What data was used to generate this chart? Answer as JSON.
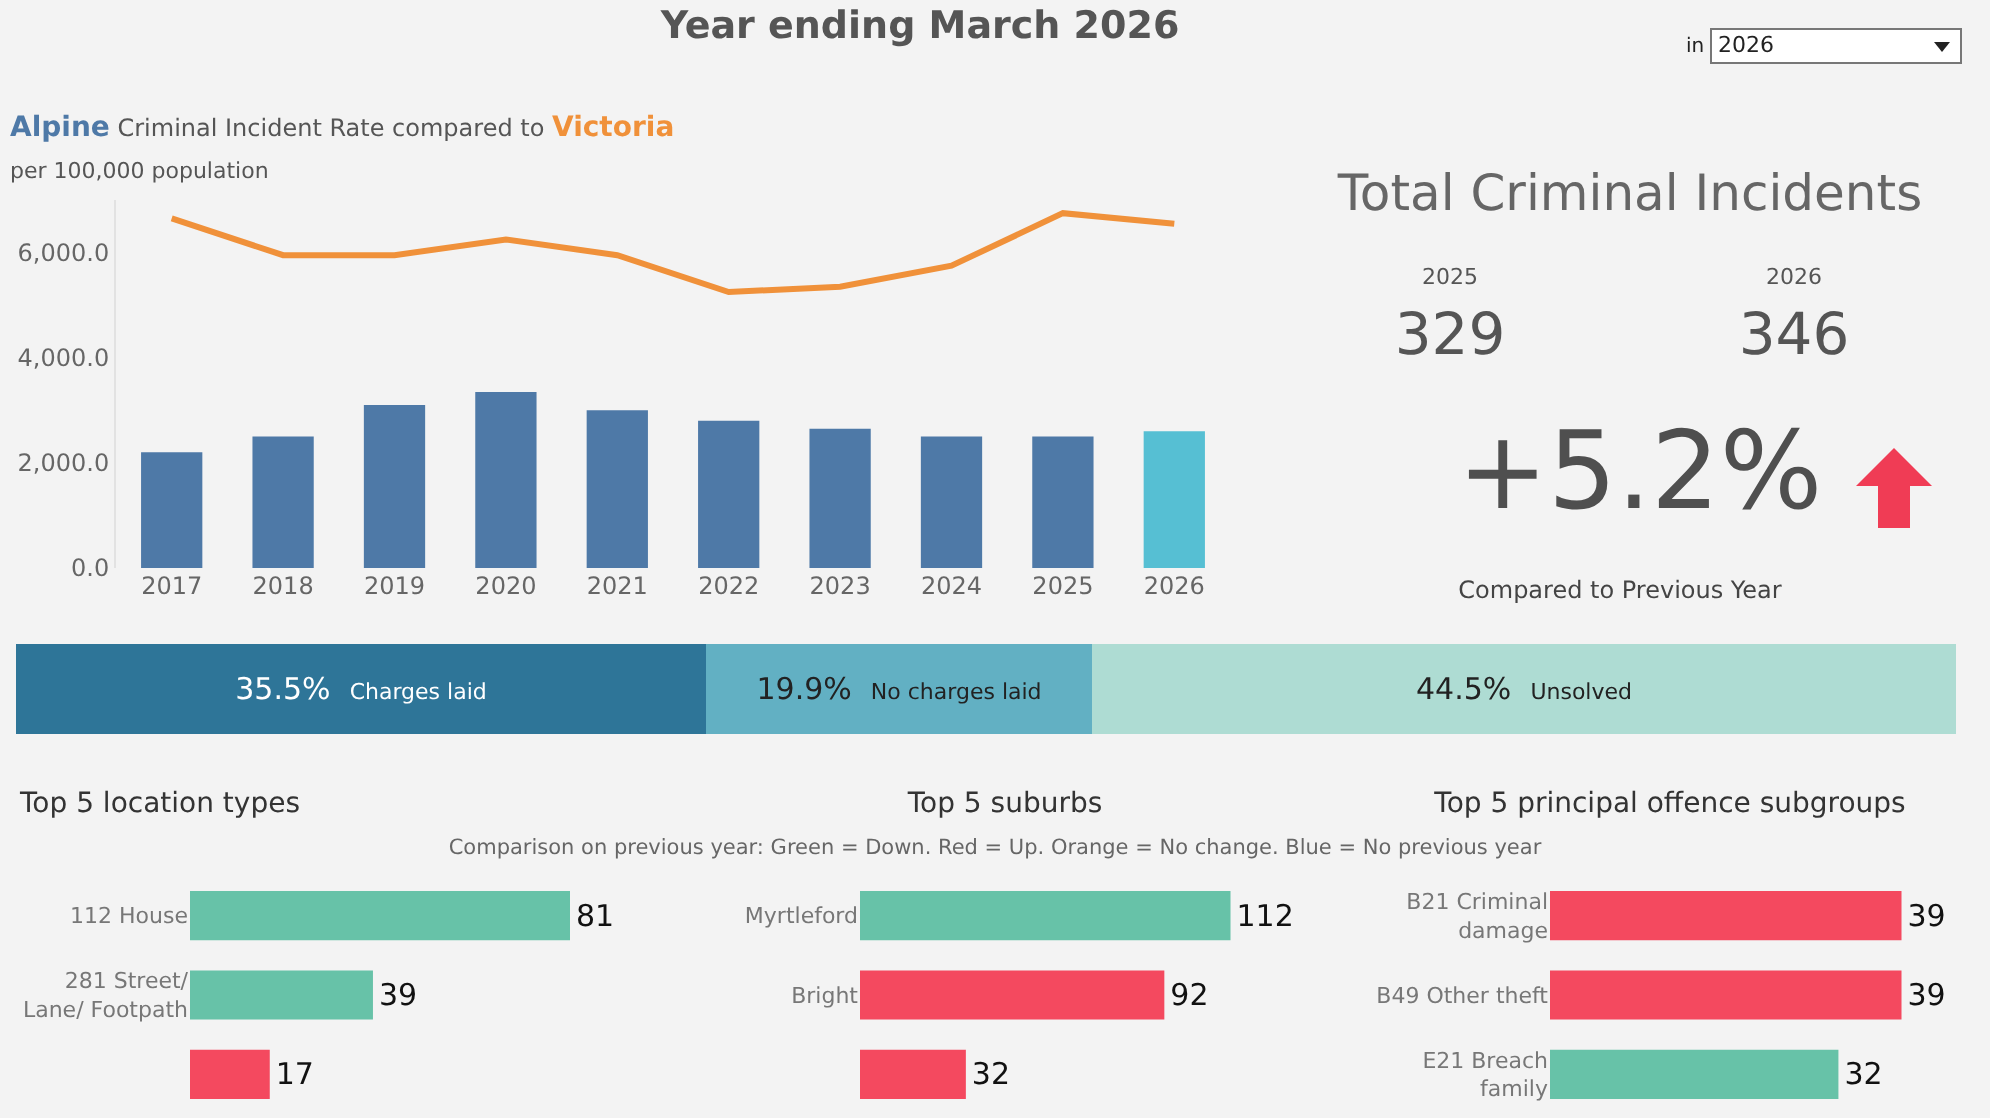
{
  "chart_data": [
    {
      "type": "other",
      "title": "Year ending March 2026",
      "annotations": [
        "in",
        "2026"
      ]
    },
    {
      "type": "bar",
      "title": "Criminal Incident Rate compared to",
      "subtitle": "per 100,000 population",
      "categories": [
        "2017",
        "2018",
        "2019",
        "2020",
        "2021",
        "2022",
        "2023",
        "2024",
        "2025",
        "2026"
      ],
      "series": [
        {
          "name": "Alpine",
          "type": "bar",
          "color": "#4e79a7",
          "colors": [
            "#4e79a7",
            "#4e79a7",
            "#4e79a7",
            "#4e79a7",
            "#4e79a7",
            "#4e79a7",
            "#4e79a7",
            "#4e79a7",
            "#4e79a7",
            "#56bfd3"
          ],
          "values": [
            2200,
            2500,
            3100,
            3350,
            3000,
            2800,
            2650,
            2500,
            2500,
            2600
          ]
        },
        {
          "name": "Victoria",
          "type": "line",
          "color": "#f0913a",
          "values": [
            6650,
            5950,
            5950,
            6250,
            5950,
            5250,
            5350,
            5750,
            6750,
            6550
          ]
        }
      ],
      "ylim": [
        0,
        7000
      ],
      "yticks": [
        {
          "value": 0,
          "label": "0.0"
        },
        {
          "value": 2000,
          "label": "2,000.0"
        },
        {
          "value": 4000,
          "label": "4,000.0"
        },
        {
          "value": 6000,
          "label": "6,000.0"
        }
      ],
      "grid": false
    },
    {
      "type": "other",
      "title": "Total Criminal Incidents",
      "annotations": [
        "2025",
        "329",
        "2026",
        "346",
        "+5.2%",
        "Compared to Previous Year"
      ]
    },
    {
      "type": "bar",
      "orientation": "horizontal",
      "stacked": true,
      "categories": [
        null
      ],
      "tick_labels": false,
      "series": [
        {
          "name": "Charges laid",
          "color": "#2e7598",
          "values": [
            35.5
          ],
          "value_labels": [
            "35.5%"
          ]
        },
        {
          "name": "No charges laid",
          "color": "#62b0c3",
          "values": [
            19.9
          ],
          "value_labels": [
            "19.9%"
          ]
        },
        {
          "name": "Unsolved",
          "color": "#aedcd3",
          "values": [
            44.5
          ],
          "value_labels": [
            "44.5%"
          ]
        }
      ]
    },
    {
      "type": "bar",
      "orientation": "horizontal",
      "title": "Top 5 location types",
      "categories": [
        "112 House",
        "281 Street/ Lane/ Footpath",
        null
      ],
      "values": [
        81,
        39,
        17
      ],
      "colors": [
        "#67c2a8",
        "#67c2a8",
        "#f4495f"
      ],
      "data_labels": true,
      "tick_labels": "y"
    },
    {
      "type": "bar",
      "orientation": "horizontal",
      "title": "Top 5 suburbs",
      "subtitle": "Comparison on previous year: Green = Down. Red = Up. Orange = No change. Blue = No previous year",
      "categories": [
        "Myrtleford",
        "Bright",
        null
      ],
      "values": [
        112,
        92,
        32
      ],
      "colors": [
        "#67c2a8",
        "#f4495f",
        "#f4495f"
      ],
      "data_labels": true,
      "tick_labels": "y"
    },
    {
      "type": "bar",
      "orientation": "horizontal",
      "title": "Top 5 principal offence subgroups",
      "categories": [
        "B21 Criminal damage",
        "B49 Other theft",
        "E21 Breach family"
      ],
      "values": [
        39,
        39,
        32
      ],
      "colors": [
        "#f4495f",
        "#f4495f",
        "#67c2a8"
      ],
      "data_labels": true,
      "tick_labels": "y"
    }
  ]
}
